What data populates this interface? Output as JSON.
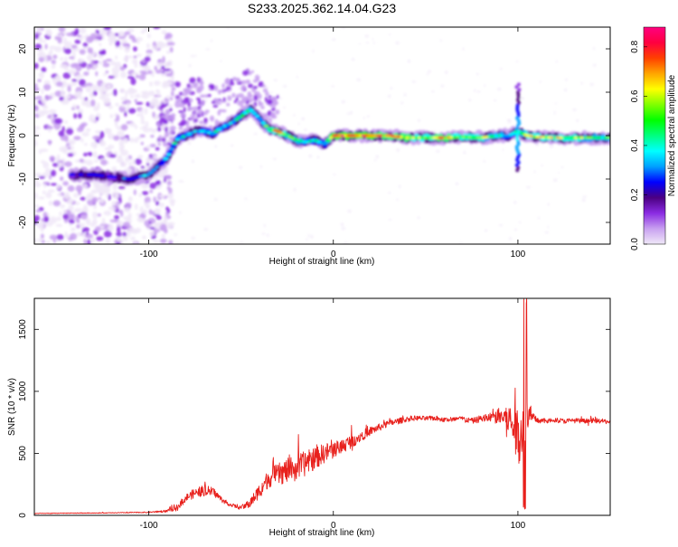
{
  "title": "S233.2025.362.14.04.G23",
  "chart_data": [
    {
      "type": "heatmap",
      "name": "spectrogram",
      "xlabel": "Height of straight line (km)",
      "ylabel": "Frequency (Hz)",
      "xlim": [
        -162,
        150
      ],
      "ylim": [
        -25,
        25
      ],
      "xticks": [
        -100,
        0,
        100
      ],
      "yticks": [
        -20,
        -10,
        0,
        10,
        20
      ],
      "colorbar": {
        "label": "Normalized spectral amplitude",
        "range": [
          0,
          0.88
        ],
        "ticks": [
          0.0,
          0.2,
          0.4,
          0.6,
          0.8
        ],
        "colors": [
          "#f0e8f8",
          "#c8a0f0",
          "#8a2be2",
          "#4b0082",
          "#0000ff",
          "#00a0ff",
          "#00ffff",
          "#00ff80",
          "#00ff00",
          "#80ff00",
          "#ffff00",
          "#ffa500",
          "#ff4000",
          "#ff0040",
          "#ff0080"
        ]
      },
      "ridge": {
        "heights_km": [
          -140,
          -130,
          -120,
          -110,
          -100,
          -95,
          -90,
          -85,
          -80,
          -75,
          -70,
          -65,
          -60,
          -55,
          -50,
          -45,
          -40,
          -35,
          -30,
          -25,
          -20,
          -15,
          -10,
          -5,
          0,
          10,
          20,
          30,
          40,
          50,
          60,
          70,
          80,
          90,
          95,
          100,
          105,
          110,
          120,
          130,
          140,
          150
        ],
        "freq_hz": [
          -9,
          -9,
          -9.5,
          -10,
          -9,
          -7,
          -5,
          -1,
          0,
          1,
          1,
          0.5,
          2,
          3,
          4.5,
          6,
          4,
          1.5,
          1,
          0,
          -1,
          -1.5,
          -1,
          -2,
          0,
          0,
          0,
          0,
          -0.5,
          -0.5,
          -0.5,
          -0.3,
          -0.5,
          0,
          0,
          1,
          0,
          -0.3,
          -0.5,
          -0.5,
          -0.5,
          -0.5
        ],
        "amplitude": [
          0.25,
          0.3,
          0.25,
          0.3,
          0.35,
          0.35,
          0.4,
          0.45,
          0.4,
          0.35,
          0.4,
          0.4,
          0.4,
          0.35,
          0.45,
          0.5,
          0.4,
          0.55,
          0.75,
          0.55,
          0.5,
          0.45,
          0.45,
          0.4,
          0.8,
          0.85,
          0.8,
          0.75,
          0.7,
          0.6,
          0.75,
          0.6,
          0.6,
          0.5,
          0.4,
          0.5,
          0.6,
          0.65,
          0.65,
          0.6,
          0.55,
          0.5
        ]
      },
      "spikes": [
        {
          "height_km": 100,
          "freq_range_hz": [
            -8,
            12
          ]
        }
      ]
    },
    {
      "type": "line",
      "name": "snr",
      "xlabel": "Height of straight line (km)",
      "ylabel": "SNR (10 * v/v)",
      "xlim": [
        -162,
        150
      ],
      "ylim": [
        0,
        1750
      ],
      "xticks": [
        -100,
        0,
        100
      ],
      "yticks": [
        0,
        500,
        1000,
        1500
      ],
      "color": "#e8201c",
      "series": [
        {
          "name": "SNR",
          "x": [
            -162,
            -140,
            -120,
            -100,
            -90,
            -85,
            -80,
            -75,
            -70,
            -65,
            -60,
            -55,
            -50,
            -45,
            -40,
            -35,
            -30,
            -25,
            -20,
            -15,
            -10,
            -5,
            0,
            5,
            10,
            15,
            20,
            25,
            30,
            35,
            40,
            45,
            50,
            55,
            60,
            65,
            70,
            75,
            80,
            85,
            90,
            95,
            98,
            100,
            102,
            104,
            106,
            108,
            110,
            115,
            120,
            125,
            130,
            135,
            140,
            145,
            150
          ],
          "y": [
            15,
            18,
            20,
            25,
            35,
            60,
            140,
            180,
            200,
            190,
            120,
            80,
            60,
            100,
            200,
            300,
            330,
            360,
            380,
            420,
            460,
            500,
            530,
            560,
            600,
            640,
            680,
            710,
            740,
            760,
            775,
            785,
            780,
            785,
            770,
            775,
            780,
            760,
            780,
            790,
            800,
            780,
            700,
            650,
            700,
            780,
            800,
            780,
            770,
            760,
            770,
            760,
            765,
            760,
            765,
            760,
            755
          ],
          "noise": [
            5,
            5,
            5,
            8,
            20,
            50,
            60,
            80,
            90,
            70,
            40,
            30,
            30,
            80,
            120,
            150,
            180,
            200,
            220,
            200,
            180,
            160,
            140,
            120,
            110,
            90,
            70,
            60,
            55,
            50,
            45,
            40,
            40,
            40,
            40,
            40,
            40,
            45,
            60,
            80,
            140,
            250,
            400,
            500,
            450,
            350,
            250,
            120,
            50,
            40,
            40,
            40,
            40,
            40,
            40,
            40,
            40
          ]
        }
      ]
    }
  ]
}
